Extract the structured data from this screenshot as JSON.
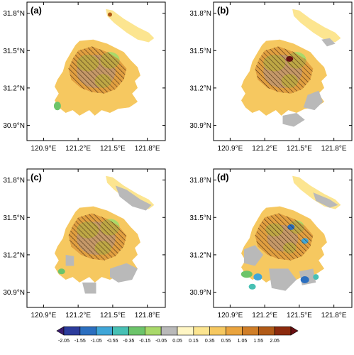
{
  "chart_data": {
    "type": "heatmap",
    "panels": [
      {
        "label": "(a)",
        "grey_regions": 0,
        "has_blue_spots": false
      },
      {
        "label": "(b)",
        "grey_regions": 3,
        "has_blue_spots": false
      },
      {
        "label": "(c)",
        "grey_regions": 4,
        "has_blue_spots": false
      },
      {
        "label": "(d)",
        "grey_regions": 4,
        "has_blue_spots": true
      }
    ],
    "x_ticks": [
      "120.9°E",
      "121.2°E",
      "121.5°E",
      "121.8°E"
    ],
    "y_ticks": [
      "31.8°N",
      "31.5°N",
      "31.2°N",
      "30.9°N"
    ],
    "colorbar": {
      "labels": [
        "-2.05",
        "-1.55",
        "-1.05",
        "-0.55",
        "-0.35",
        "-0.15",
        "-0.05",
        "0.05",
        "0.15",
        "0.35",
        "0.55",
        "1.05",
        "1.55",
        "2.05"
      ],
      "colors": [
        "#3a1a6e",
        "#2c3c9c",
        "#2b6fc0",
        "#3fa6d8",
        "#47c0b4",
        "#6cc46a",
        "#a9d96a",
        "#b9b9b9",
        "#fff6c4",
        "#fce590",
        "#f6c860",
        "#eaa43e",
        "#d07e27",
        "#b15a17",
        "#8c2a0d",
        "#6a0f12"
      ]
    },
    "hatching": "diagonal hatched area over central land region"
  }
}
